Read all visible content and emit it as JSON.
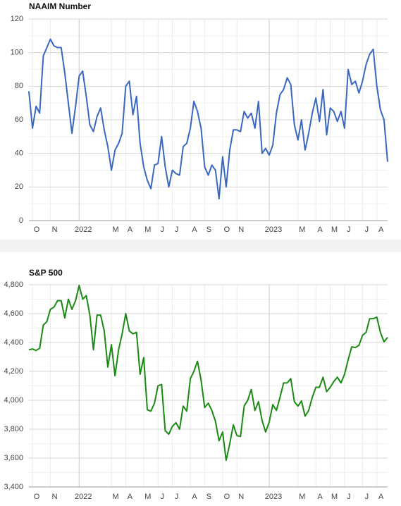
{
  "chart_data": [
    {
      "type": "line",
      "title": "NAAIM Number",
      "categories": [
        null,
        "O",
        null,
        null,
        null,
        null,
        "N",
        null,
        null,
        null,
        null,
        null,
        null,
        null,
        "2022",
        null,
        null,
        null,
        null,
        null,
        null,
        null,
        null,
        "M",
        null,
        null,
        null,
        "A",
        null,
        null,
        null,
        null,
        "M",
        null,
        null,
        null,
        "J",
        null,
        null,
        null,
        "J",
        null,
        null,
        null,
        null,
        "A",
        null,
        null,
        null,
        "S",
        null,
        null,
        null,
        null,
        "O",
        null,
        null,
        null,
        "N",
        null,
        null,
        null,
        null,
        null,
        null,
        null,
        null,
        "2023",
        null,
        null,
        null,
        null,
        null,
        null,
        null,
        "M",
        null,
        null,
        null,
        null,
        "A",
        null,
        null,
        null,
        "M",
        null,
        null,
        null,
        "J",
        null,
        null,
        null,
        null,
        "J",
        null,
        null,
        null,
        "A",
        null,
        null,
        null
      ],
      "series": [
        {
          "name": "NAAIM Number",
          "color": "#3a67c0",
          "values": [
            77,
            55,
            68,
            64,
            98,
            103,
            108,
            104,
            103,
            103,
            88,
            70,
            52,
            68,
            86,
            89,
            74,
            57,
            53,
            62,
            67,
            54,
            44,
            30,
            42,
            46,
            52,
            80,
            83,
            63,
            74,
            46,
            32,
            24,
            19,
            33,
            34,
            50,
            32,
            20,
            30,
            28,
            27,
            44,
            46,
            55,
            71,
            65,
            55,
            32,
            27,
            33,
            30,
            13,
            38,
            20,
            42,
            54,
            54,
            53,
            65,
            61,
            64,
            55,
            71,
            40,
            43,
            39,
            45,
            64,
            75,
            78,
            85,
            81,
            57,
            48,
            60,
            42,
            52,
            64,
            73,
            59,
            78,
            51,
            67,
            65,
            59,
            65,
            55,
            90,
            81,
            83,
            76,
            83,
            93,
            99,
            102,
            80,
            66,
            60,
            35
          ]
        }
      ],
      "ylim": [
        0,
        120
      ],
      "yticks": [
        0,
        20,
        40,
        60,
        80,
        100,
        120
      ],
      "grid": true
    },
    {
      "type": "line",
      "title": "S&P 500",
      "categories": [
        null,
        "O",
        null,
        null,
        null,
        null,
        "N",
        null,
        null,
        null,
        null,
        null,
        null,
        null,
        "2022",
        null,
        null,
        null,
        null,
        null,
        null,
        null,
        null,
        "M",
        null,
        null,
        null,
        "A",
        null,
        null,
        null,
        null,
        "M",
        null,
        null,
        null,
        "J",
        null,
        null,
        null,
        "J",
        null,
        null,
        null,
        null,
        "A",
        null,
        null,
        null,
        "S",
        null,
        null,
        null,
        null,
        "O",
        null,
        null,
        null,
        "N",
        null,
        null,
        null,
        null,
        null,
        null,
        null,
        null,
        "2023",
        null,
        null,
        null,
        null,
        null,
        null,
        null,
        "M",
        null,
        null,
        null,
        null,
        "A",
        null,
        null,
        null,
        "M",
        null,
        null,
        null,
        "J",
        null,
        null,
        null,
        null,
        "J",
        null,
        null,
        null,
        "A",
        null,
        null,
        null
      ],
      "series": [
        {
          "name": "S&P 500",
          "color": "#1a8a12",
          "values": [
            4350,
            4355,
            4345,
            4360,
            4520,
            4545,
            4630,
            4645,
            4690,
            4690,
            4570,
            4700,
            4630,
            4690,
            4795,
            4700,
            4725,
            4590,
            4350,
            4590,
            4590,
            4480,
            4230,
            4385,
            4170,
            4350,
            4460,
            4600,
            4480,
            4460,
            4470,
            4180,
            4295,
            3935,
            3925,
            3980,
            4100,
            4110,
            3790,
            3765,
            3820,
            3845,
            3800,
            3960,
            3925,
            4150,
            4200,
            4270,
            4140,
            3950,
            3980,
            3930,
            3855,
            3720,
            3780,
            3585,
            3700,
            3830,
            3755,
            3750,
            3960,
            4000,
            4075,
            3930,
            3990,
            3860,
            3780,
            3850,
            3970,
            3930,
            4020,
            4120,
            4120,
            4150,
            3990,
            3960,
            3995,
            3890,
            3930,
            4020,
            4090,
            4090,
            4160,
            4060,
            4090,
            4130,
            4160,
            4120,
            4180,
            4280,
            4370,
            4365,
            4380,
            4450,
            4470,
            4565,
            4565,
            4575,
            4470,
            4405,
            4435
          ]
        }
      ],
      "ylim": [
        3400,
        4800
      ],
      "yticks": [
        {
          "value": 3400,
          "label": "3,400"
        },
        {
          "value": 3600,
          "label": "3,600"
        },
        {
          "value": 3800,
          "label": "3,800"
        },
        {
          "value": 4000,
          "label": "4,000"
        },
        {
          "value": 4200,
          "label": "4,200"
        },
        {
          "value": 4400,
          "label": "4,400"
        },
        {
          "value": 4600,
          "label": "4,600"
        },
        {
          "value": 4800,
          "label": "4,800"
        }
      ],
      "grid": true
    }
  ]
}
